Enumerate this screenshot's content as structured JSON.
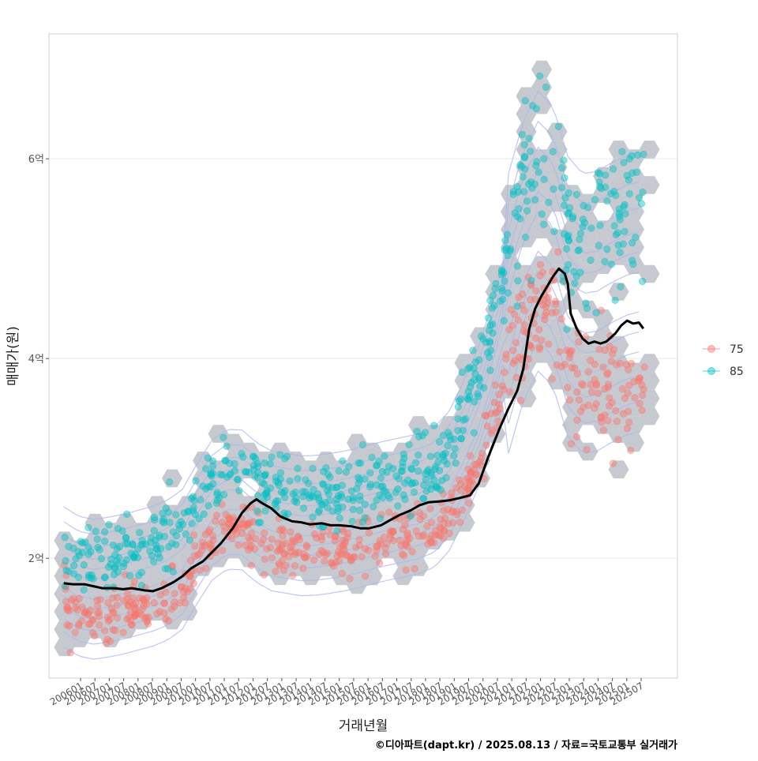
{
  "chart_data": {
    "type": "scatter",
    "title": "",
    "xlabel": "거래년월",
    "ylabel": "매매가(원)",
    "caption": "©디아파트(dapt.kr) / 2025.08.13 / 자료=국토교통부 실거래가",
    "x_tick_labels": [
      "200601",
      "200607",
      "200701",
      "200707",
      "200801",
      "200807",
      "200901",
      "200907",
      "201001",
      "201007",
      "201101",
      "201107",
      "201201",
      "201207",
      "201301",
      "201307",
      "201401",
      "201407",
      "201501",
      "201507",
      "201601",
      "201607",
      "201701",
      "201707",
      "201801",
      "201807",
      "201901",
      "201907",
      "202001",
      "202007",
      "202101",
      "202107",
      "202201",
      "202207",
      "202301",
      "202307",
      "202401",
      "202407",
      "202501",
      "202507"
    ],
    "y_ticks": [
      {
        "value": 2,
        "label": "2억"
      },
      {
        "value": 4,
        "label": "4억"
      },
      {
        "value": 6,
        "label": "6억"
      }
    ],
    "ylim": [
      0.8,
      7.25
    ],
    "xlim": [
      2005.5,
      2026.7
    ],
    "grid": true,
    "legend": {
      "position": "right",
      "entries": [
        {
          "name": "75",
          "color": "#F8766D"
        },
        {
          "name": "85",
          "color": "#00BFC4"
        }
      ]
    },
    "series": [
      {
        "name": "75",
        "color": "#F8766D",
        "trend": [
          [
            2006.0,
            1.58
          ],
          [
            2006.5,
            1.42
          ],
          [
            2007.0,
            1.38
          ],
          [
            2007.5,
            1.4
          ],
          [
            2008.0,
            1.43
          ],
          [
            2008.5,
            1.48
          ],
          [
            2009.0,
            1.52
          ],
          [
            2009.5,
            1.58
          ],
          [
            2010.0,
            1.68
          ],
          [
            2010.5,
            1.95
          ],
          [
            2011.0,
            2.18
          ],
          [
            2011.5,
            2.28
          ],
          [
            2012.0,
            2.32
          ],
          [
            2012.5,
            2.2
          ],
          [
            2013.0,
            2.1
          ],
          [
            2013.5,
            2.08
          ],
          [
            2014.0,
            2.05
          ],
          [
            2014.5,
            2.06
          ],
          [
            2015.0,
            2.08
          ],
          [
            2015.5,
            2.1
          ],
          [
            2016.0,
            2.14
          ],
          [
            2016.5,
            2.18
          ],
          [
            2017.0,
            2.22
          ],
          [
            2017.5,
            2.25
          ],
          [
            2018.0,
            2.28
          ],
          [
            2018.5,
            2.32
          ],
          [
            2019.0,
            2.45
          ],
          [
            2019.5,
            2.65
          ],
          [
            2020.0,
            2.95
          ],
          [
            2020.5,
            3.4
          ],
          [
            2021.0,
            3.9
          ],
          [
            2021.5,
            4.35
          ],
          [
            2022.0,
            4.55
          ],
          [
            2022.5,
            4.45
          ],
          [
            2023.0,
            3.95
          ],
          [
            2023.5,
            3.75
          ],
          [
            2024.0,
            3.65
          ],
          [
            2024.5,
            3.68
          ],
          [
            2025.0,
            3.72
          ],
          [
            2025.5,
            3.75
          ]
        ],
        "spread": 0.13
      },
      {
        "name": "85",
        "color": "#00BFC4",
        "trend": [
          [
            2006.0,
            2.05
          ],
          [
            2006.5,
            2.02
          ],
          [
            2007.0,
            2.0
          ],
          [
            2007.5,
            2.02
          ],
          [
            2008.0,
            2.05
          ],
          [
            2008.5,
            2.08
          ],
          [
            2009.0,
            2.12
          ],
          [
            2009.5,
            2.18
          ],
          [
            2010.0,
            2.3
          ],
          [
            2010.5,
            2.55
          ],
          [
            2011.0,
            2.78
          ],
          [
            2011.5,
            2.9
          ],
          [
            2012.0,
            2.85
          ],
          [
            2012.5,
            2.72
          ],
          [
            2013.0,
            2.65
          ],
          [
            2013.5,
            2.62
          ],
          [
            2014.0,
            2.6
          ],
          [
            2014.5,
            2.6
          ],
          [
            2015.0,
            2.62
          ],
          [
            2015.5,
            2.65
          ],
          [
            2016.0,
            2.68
          ],
          [
            2016.5,
            2.72
          ],
          [
            2017.0,
            2.75
          ],
          [
            2017.5,
            2.78
          ],
          [
            2018.0,
            2.82
          ],
          [
            2018.5,
            2.9
          ],
          [
            2019.0,
            3.1
          ],
          [
            2019.5,
            3.5
          ],
          [
            2020.0,
            3.9
          ],
          [
            2020.5,
            4.4
          ],
          [
            2021.0,
            5.0
          ],
          [
            2021.5,
            5.6
          ],
          [
            2022.0,
            6.0
          ],
          [
            2022.5,
            5.8
          ],
          [
            2023.0,
            5.3
          ],
          [
            2023.5,
            5.15
          ],
          [
            2024.0,
            5.3
          ],
          [
            2024.5,
            5.45
          ],
          [
            2025.0,
            5.55
          ],
          [
            2025.5,
            5.6
          ]
        ],
        "spread": 0.18
      }
    ],
    "median_line": {
      "color": "#000000",
      "points": [
        [
          2006.0,
          1.75
        ],
        [
          2006.3,
          1.74
        ],
        [
          2006.7,
          1.74
        ],
        [
          2007.0,
          1.72
        ],
        [
          2007.3,
          1.7
        ],
        [
          2007.7,
          1.7
        ],
        [
          2008.0,
          1.69
        ],
        [
          2008.3,
          1.7
        ],
        [
          2008.7,
          1.68
        ],
        [
          2009.0,
          1.67
        ],
        [
          2009.3,
          1.7
        ],
        [
          2009.7,
          1.76
        ],
        [
          2010.0,
          1.82
        ],
        [
          2010.3,
          1.9
        ],
        [
          2010.7,
          1.97
        ],
        [
          2011.0,
          2.06
        ],
        [
          2011.3,
          2.15
        ],
        [
          2011.7,
          2.3
        ],
        [
          2012.0,
          2.45
        ],
        [
          2012.3,
          2.55
        ],
        [
          2012.5,
          2.59
        ],
        [
          2012.7,
          2.55
        ],
        [
          2013.0,
          2.5
        ],
        [
          2013.3,
          2.42
        ],
        [
          2013.7,
          2.37
        ],
        [
          2014.0,
          2.36
        ],
        [
          2014.3,
          2.34
        ],
        [
          2014.7,
          2.35
        ],
        [
          2015.0,
          2.33
        ],
        [
          2015.3,
          2.33
        ],
        [
          2015.7,
          2.32
        ],
        [
          2016.0,
          2.3
        ],
        [
          2016.3,
          2.3
        ],
        [
          2016.7,
          2.33
        ],
        [
          2017.0,
          2.38
        ],
        [
          2017.3,
          2.43
        ],
        [
          2017.7,
          2.48
        ],
        [
          2018.0,
          2.53
        ],
        [
          2018.3,
          2.56
        ],
        [
          2018.7,
          2.57
        ],
        [
          2019.0,
          2.58
        ],
        [
          2019.3,
          2.6
        ],
        [
          2019.7,
          2.63
        ],
        [
          2020.0,
          2.75
        ],
        [
          2020.3,
          3.0
        ],
        [
          2020.7,
          3.3
        ],
        [
          2021.0,
          3.5
        ],
        [
          2021.3,
          3.68
        ],
        [
          2021.5,
          3.9
        ],
        [
          2021.7,
          4.3
        ],
        [
          2021.9,
          4.5
        ],
        [
          2022.1,
          4.62
        ],
        [
          2022.3,
          4.72
        ],
        [
          2022.5,
          4.82
        ],
        [
          2022.7,
          4.9
        ],
        [
          2022.9,
          4.85
        ],
        [
          2023.0,
          4.75
        ],
        [
          2023.1,
          4.45
        ],
        [
          2023.3,
          4.3
        ],
        [
          2023.5,
          4.2
        ],
        [
          2023.7,
          4.15
        ],
        [
          2023.9,
          4.17
        ],
        [
          2024.1,
          4.15
        ],
        [
          2024.3,
          4.17
        ],
        [
          2024.6,
          4.25
        ],
        [
          2024.8,
          4.33
        ],
        [
          2025.0,
          4.38
        ],
        [
          2025.2,
          4.35
        ],
        [
          2025.4,
          4.36
        ],
        [
          2025.55,
          4.3
        ]
      ]
    }
  }
}
